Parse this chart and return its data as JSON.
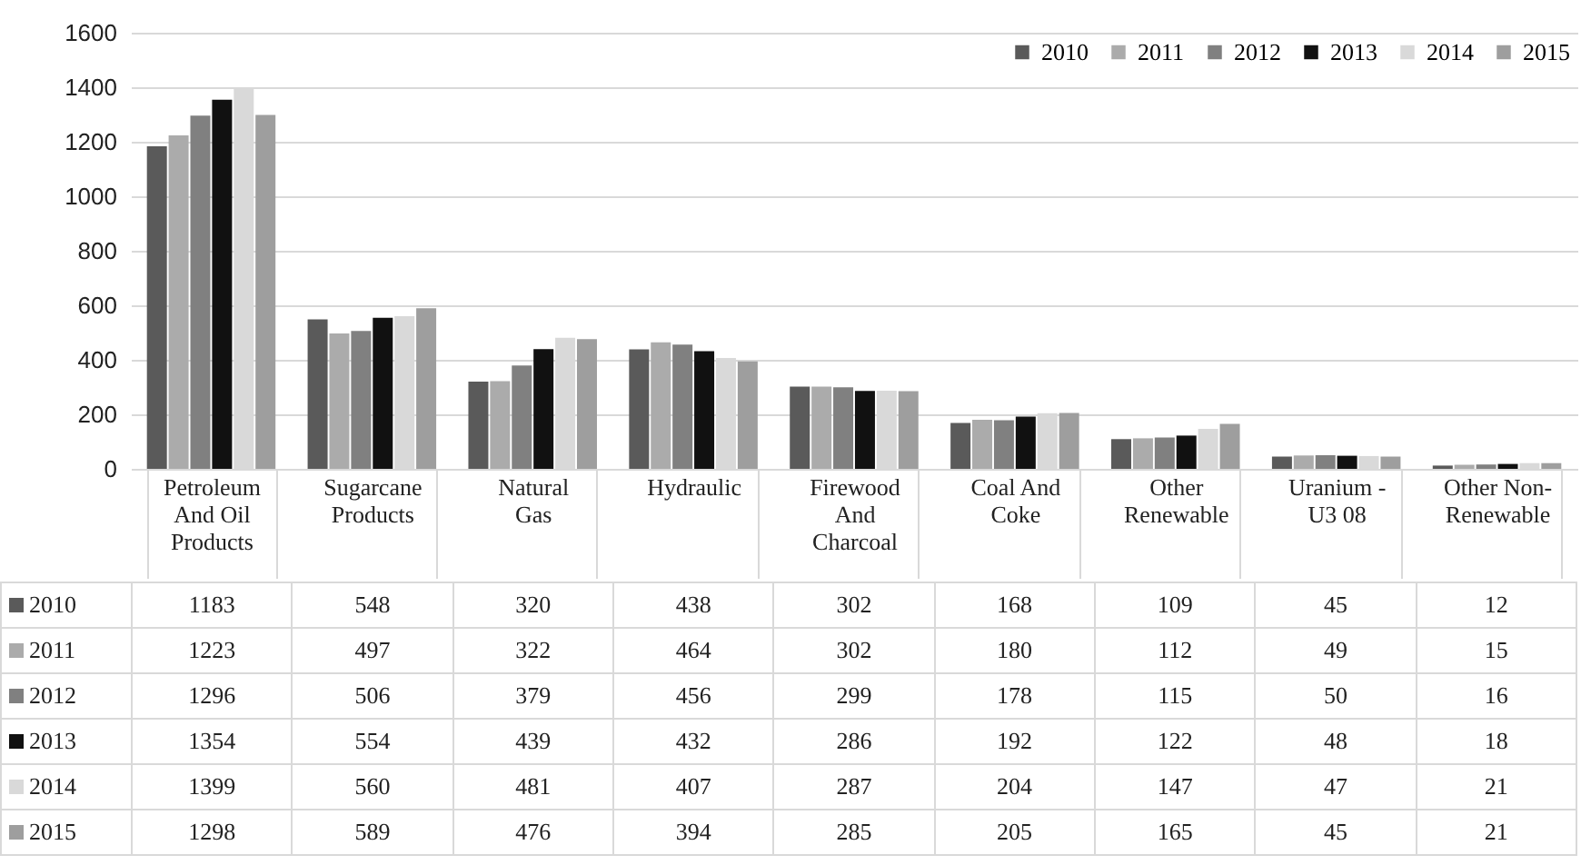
{
  "chart_data": {
    "type": "bar",
    "categories": [
      "Petroleum And Oil Products",
      "Sugarcane Products",
      "Natural Gas",
      "Hydraulic",
      "Firewood And Charcoal",
      "Coal And Coke",
      "Other Renewable",
      "Uranium - U3 08",
      "Other Non-Renewable"
    ],
    "series": [
      {
        "name": "2010",
        "color": "#5a5a5a",
        "values": [
          1183,
          548,
          320,
          438,
          302,
          168,
          109,
          45,
          12
        ]
      },
      {
        "name": "2011",
        "color": "#ababab",
        "values": [
          1223,
          497,
          322,
          464,
          302,
          180,
          112,
          49,
          15
        ]
      },
      {
        "name": "2012",
        "color": "#808080",
        "values": [
          1296,
          506,
          379,
          456,
          299,
          178,
          115,
          50,
          16
        ]
      },
      {
        "name": "2013",
        "color": "#111111",
        "values": [
          1354,
          554,
          439,
          432,
          286,
          192,
          122,
          48,
          18
        ]
      },
      {
        "name": "2014",
        "color": "#d9d9d9",
        "values": [
          1399,
          560,
          481,
          407,
          287,
          204,
          147,
          47,
          21
        ]
      },
      {
        "name": "2015",
        "color": "#9e9e9e",
        "values": [
          1298,
          589,
          476,
          394,
          285,
          205,
          165,
          45,
          21
        ]
      }
    ],
    "ylim": [
      0,
      1600
    ],
    "yticks": [
      0,
      200,
      400,
      600,
      800,
      1000,
      1200,
      1400,
      1600
    ],
    "grid": "y",
    "legend": "top right",
    "data_labels": true
  }
}
